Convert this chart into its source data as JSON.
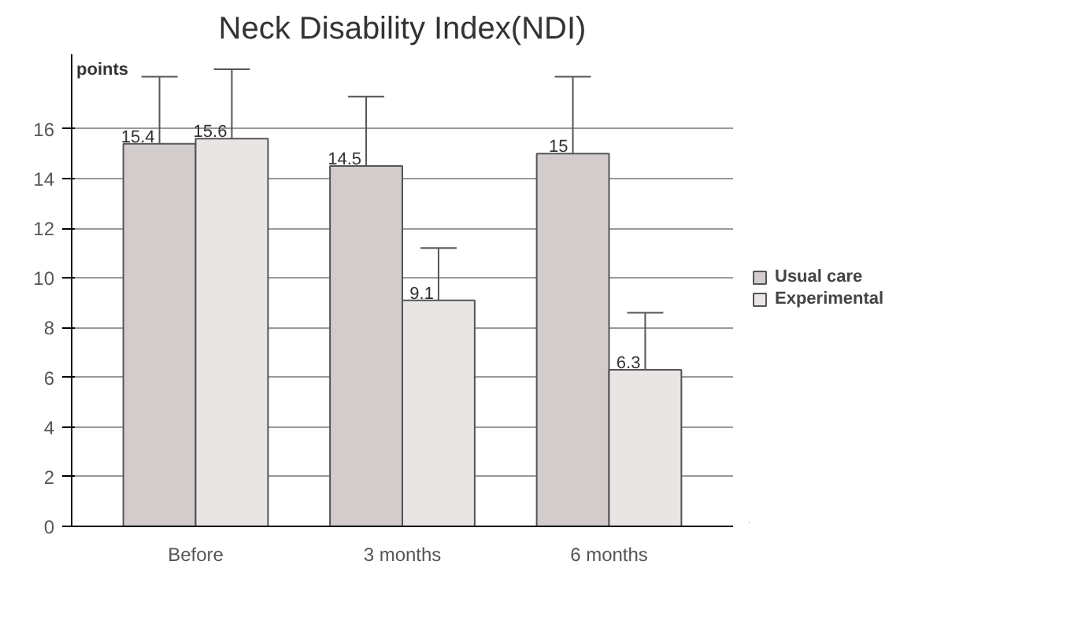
{
  "chart_data": {
    "type": "bar",
    "title": "Neck Disability Index(NDI)",
    "ylabel": "points",
    "categories": [
      "Before",
      "3 months",
      "6 months"
    ],
    "series": [
      {
        "name": "Usual care",
        "color": "#d3cccc",
        "values": [
          15.4,
          14.5,
          15
        ],
        "errors": [
          [
            15.4,
            18.1
          ],
          [
            14.5,
            17.3
          ],
          [
            15,
            18.1
          ]
        ]
      },
      {
        "name": "Experimental",
        "color": "#e9e5e5",
        "values": [
          15.6,
          9.1,
          6.3
        ],
        "errors": [
          [
            15.6,
            18.4
          ],
          [
            9.1,
            11.2
          ],
          [
            6.3,
            8.6
          ]
        ]
      }
    ],
    "ylim": [
      0,
      19
    ],
    "yticks": [
      0,
      2,
      4,
      6,
      8,
      10,
      12,
      14,
      16
    ],
    "grid": "y",
    "legend": "right",
    "data_labels": true
  }
}
